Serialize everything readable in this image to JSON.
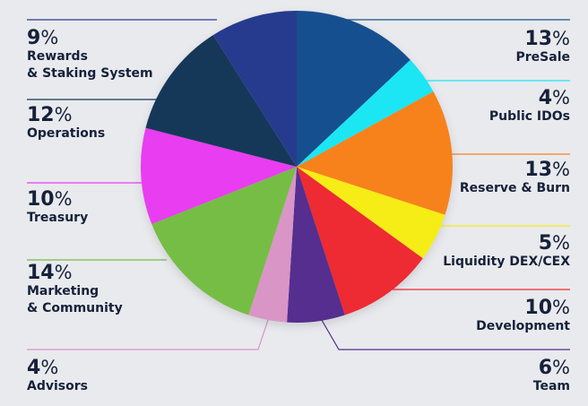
{
  "chart_data": {
    "type": "pie",
    "title": "",
    "start_angle_deg": 0,
    "direction": "clockwise",
    "slices": [
      {
        "label": "PreSale",
        "value": 13,
        "color": "#15508f"
      },
      {
        "label": "Public IDOs",
        "value": 4,
        "color": "#1be6f4"
      },
      {
        "label": "Reserve & Burn",
        "value": 13,
        "color": "#f7821e"
      },
      {
        "label": "Liquidity DEX/CEX",
        "value": 5,
        "color": "#f6ec16"
      },
      {
        "label": "Development",
        "value": 10,
        "color": "#ee2930"
      },
      {
        "label": "Team",
        "value": 6,
        "color": "#542e8f"
      },
      {
        "label": "Advisors",
        "value": 4,
        "color": "#d995c6"
      },
      {
        "label": "Marketing & Community",
        "value": 14,
        "color": "#76bd44"
      },
      {
        "label": "Treasury",
        "value": 10,
        "color": "#e93df1"
      },
      {
        "label": "Operations",
        "value": 12,
        "color": "#163758"
      },
      {
        "label": "Rewards & Staking System",
        "value": 9,
        "color": "#263b8e"
      }
    ],
    "percent_symbol": "%"
  }
}
